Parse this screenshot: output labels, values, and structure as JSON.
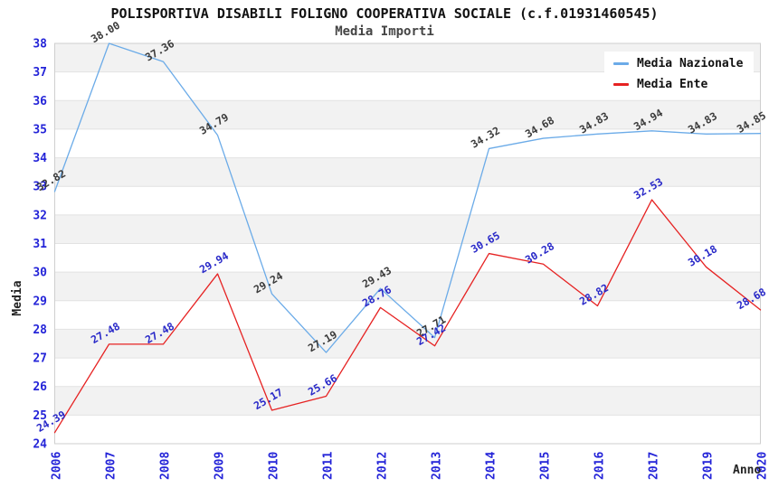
{
  "chart_data": {
    "type": "line",
    "title": "POLISPORTIVA DISABILI FOLIGNO COOPERATIVA SOCIALE (c.f.01931460545)",
    "subtitle": "Media Importi",
    "xlabel": "Anno",
    "ylabel": "Media",
    "categories": [
      "2006",
      "2007",
      "2008",
      "2009",
      "2010",
      "2011",
      "2012",
      "2013",
      "2014",
      "2015",
      "2016",
      "2017",
      "2019",
      "2020"
    ],
    "series": [
      {
        "name": "Media Nazionale",
        "color": "#6babe8",
        "label_color": "#3a3a3a",
        "values": [
          32.82,
          38.0,
          37.36,
          34.79,
          29.24,
          27.19,
          29.43,
          27.71,
          34.32,
          34.68,
          34.83,
          34.94,
          34.83,
          34.85
        ]
      },
      {
        "name": "Media Ente",
        "color": "#e62222",
        "label_color": "#2828c8",
        "values": [
          24.39,
          27.48,
          27.48,
          29.94,
          25.17,
          25.66,
          28.76,
          27.42,
          30.65,
          30.28,
          28.82,
          32.53,
          30.18,
          28.68
        ]
      }
    ],
    "ylim": [
      24,
      38
    ],
    "ytick_step": 1,
    "grid": "horizontal",
    "band_color": "#f2f2f2",
    "grid_color": "#e2e2e2",
    "border_color": "#cfcfcf",
    "tick_label_color": "#2424d8",
    "legend_position": "top-right"
  }
}
